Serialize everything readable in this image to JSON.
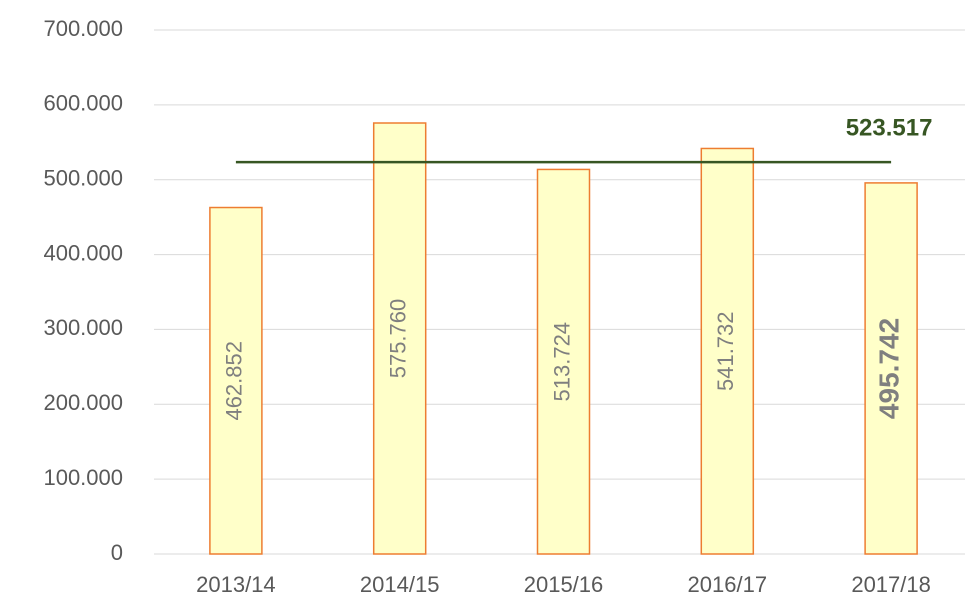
{
  "chart_data": {
    "type": "bar",
    "categories": [
      "2013/14",
      "2014/15",
      "2015/16",
      "2016/17",
      "2017/18"
    ],
    "values": [
      462852,
      575760,
      513724,
      541732,
      495742
    ],
    "value_labels": [
      "462.852",
      "575.760",
      "513.724",
      "541.732",
      "495.742"
    ],
    "bold_labels": [
      false,
      false,
      false,
      false,
      true
    ],
    "color": "#ffffc9",
    "edge_color": "#ed7d31",
    "ylim": [
      0,
      700000
    ],
    "yticks": [
      0,
      {
        "value": 100000,
        "label": "100.000"
      },
      {
        "value": 200000,
        "label": "200.000"
      },
      {
        "value": 300000,
        "label": "300.000"
      },
      {
        "value": 400000,
        "label": "400.000"
      },
      {
        "value": 500000,
        "label": "500.000"
      },
      {
        "value": 600000,
        "label": "600.000"
      },
      {
        "value": 700000,
        "label": "700.000"
      }
    ],
    "grid": true,
    "average_line": {
      "value": 523517,
      "label": "523.517",
      "color": "#375623"
    }
  }
}
